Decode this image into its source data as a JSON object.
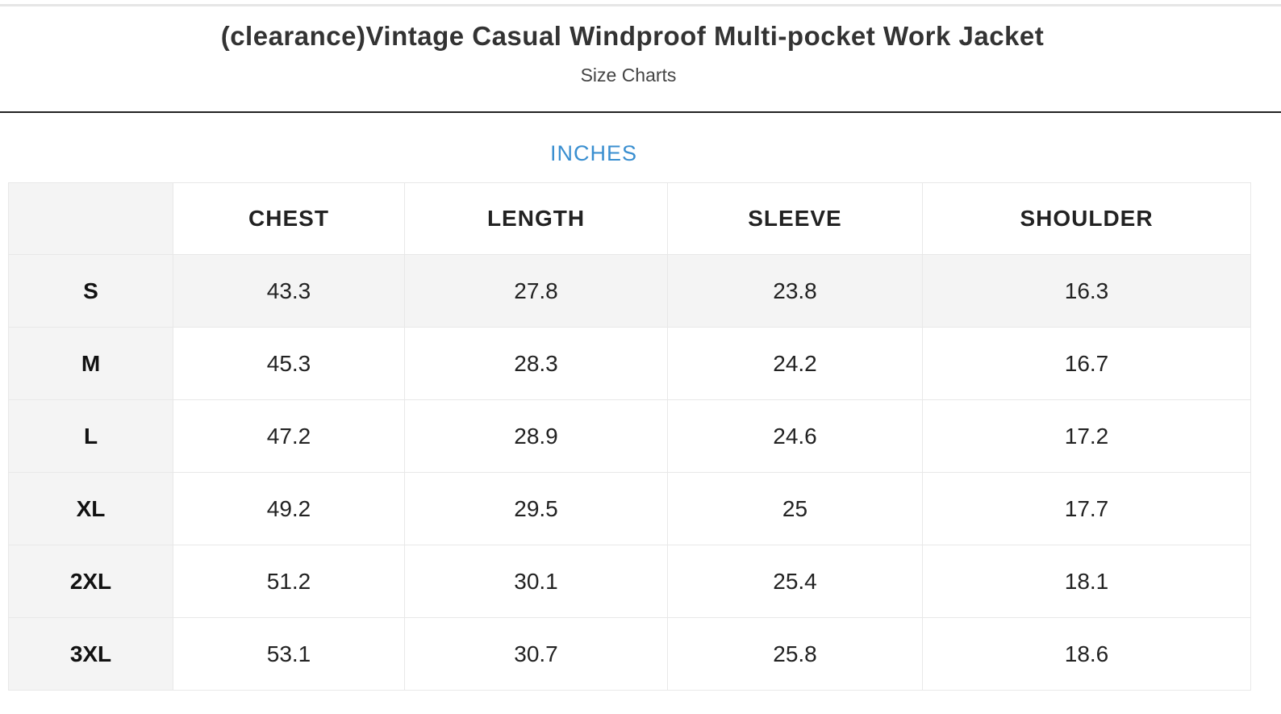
{
  "header": {
    "title": "(clearance)Vintage Casual Windproof Multi-pocket Work Jacket",
    "subtitle": "Size Charts"
  },
  "unit_label": "INCHES",
  "accent_color": "#3a8fd0",
  "table": {
    "columns": [
      "",
      "CHEST",
      "LENGTH",
      "SLEEVE",
      "SHOULDER"
    ],
    "rows": [
      {
        "size": "S",
        "values": [
          "43.3",
          "27.8",
          "23.8",
          "16.3"
        ]
      },
      {
        "size": "M",
        "values": [
          "45.3",
          "28.3",
          "24.2",
          "16.7"
        ]
      },
      {
        "size": "L",
        "values": [
          "47.2",
          "28.9",
          "24.6",
          "17.2"
        ]
      },
      {
        "size": "XL",
        "values": [
          "49.2",
          "29.5",
          "25",
          "17.7"
        ]
      },
      {
        "size": "2XL",
        "values": [
          "51.2",
          "30.1",
          "25.4",
          "18.1"
        ]
      },
      {
        "size": "3XL",
        "values": [
          "53.1",
          "30.7",
          "25.8",
          "18.6"
        ]
      }
    ]
  }
}
